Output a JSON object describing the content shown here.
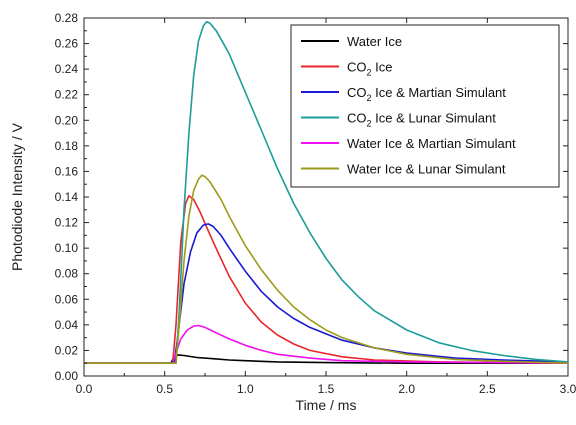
{
  "chart_data": {
    "type": "line",
    "xlabel": "Time / ms",
    "ylabel": "Photodiode Intensity / V",
    "xlim": [
      0.0,
      3.0
    ],
    "ylim": [
      0.0,
      0.28
    ],
    "x_ticks": [
      "0.0",
      "0.5",
      "1.0",
      "1.5",
      "2.0",
      "2.5",
      "3.0"
    ],
    "y_ticks": [
      "0.00",
      "0.02",
      "0.04",
      "0.06",
      "0.08",
      "0.10",
      "0.12",
      "0.14",
      "0.16",
      "0.18",
      "0.20",
      "0.22",
      "0.24",
      "0.26",
      "0.28"
    ],
    "grid": false,
    "legend_position": "top-right",
    "series": [
      {
        "name": "Water Ice",
        "name_main": "Water Ice",
        "name_sub": "",
        "name_tail": "",
        "color": "#000000",
        "points": [
          [
            0.0,
            0.01
          ],
          [
            0.54,
            0.01
          ],
          [
            0.55,
            0.013
          ],
          [
            0.58,
            0.0165
          ],
          [
            0.62,
            0.016
          ],
          [
            0.7,
            0.0145
          ],
          [
            0.8,
            0.0135
          ],
          [
            0.9,
            0.0125
          ],
          [
            1.0,
            0.012
          ],
          [
            1.2,
            0.011
          ],
          [
            1.5,
            0.0105
          ],
          [
            2.0,
            0.01
          ],
          [
            3.0,
            0.01
          ]
        ]
      },
      {
        "name": "CO2 Ice",
        "name_main": "CO",
        "name_sub": "2",
        "name_tail": " Ice",
        "color": "#e8262a",
        "points": [
          [
            0.0,
            0.01
          ],
          [
            0.55,
            0.01
          ],
          [
            0.57,
            0.04
          ],
          [
            0.6,
            0.105
          ],
          [
            0.63,
            0.135
          ],
          [
            0.65,
            0.141
          ],
          [
            0.68,
            0.138
          ],
          [
            0.72,
            0.128
          ],
          [
            0.8,
            0.105
          ],
          [
            0.9,
            0.078
          ],
          [
            1.0,
            0.057
          ],
          [
            1.1,
            0.042
          ],
          [
            1.2,
            0.032
          ],
          [
            1.3,
            0.025
          ],
          [
            1.4,
            0.02
          ],
          [
            1.6,
            0.015
          ],
          [
            1.8,
            0.0125
          ],
          [
            2.2,
            0.011
          ],
          [
            3.0,
            0.01
          ]
        ]
      },
      {
        "name": "CO2 Ice & Martian Simulant",
        "name_main": "CO",
        "name_sub": "2",
        "name_tail": " Ice & Martian Simulant",
        "color": "#1919d6",
        "points": [
          [
            0.0,
            0.01
          ],
          [
            0.56,
            0.01
          ],
          [
            0.58,
            0.03
          ],
          [
            0.62,
            0.072
          ],
          [
            0.66,
            0.097
          ],
          [
            0.7,
            0.112
          ],
          [
            0.74,
            0.118
          ],
          [
            0.77,
            0.119
          ],
          [
            0.8,
            0.117
          ],
          [
            0.85,
            0.11
          ],
          [
            0.9,
            0.1
          ],
          [
            1.0,
            0.082
          ],
          [
            1.1,
            0.066
          ],
          [
            1.2,
            0.054
          ],
          [
            1.3,
            0.045
          ],
          [
            1.4,
            0.038
          ],
          [
            1.6,
            0.028
          ],
          [
            1.8,
            0.022
          ],
          [
            2.0,
            0.018
          ],
          [
            2.3,
            0.014
          ],
          [
            2.6,
            0.0125
          ],
          [
            3.0,
            0.011
          ]
        ]
      },
      {
        "name": "CO2 Ice & Lunar Simulant",
        "name_main": "CO",
        "name_sub": "2",
        "name_tail": " Ice & Lunar Simulant",
        "color": "#1c9d9a",
        "points": [
          [
            0.0,
            0.01
          ],
          [
            0.57,
            0.01
          ],
          [
            0.59,
            0.05
          ],
          [
            0.62,
            0.13
          ],
          [
            0.65,
            0.19
          ],
          [
            0.68,
            0.235
          ],
          [
            0.71,
            0.262
          ],
          [
            0.74,
            0.274
          ],
          [
            0.76,
            0.277
          ],
          [
            0.78,
            0.276
          ],
          [
            0.82,
            0.27
          ],
          [
            0.9,
            0.252
          ],
          [
            1.0,
            0.222
          ],
          [
            1.1,
            0.192
          ],
          [
            1.2,
            0.162
          ],
          [
            1.3,
            0.135
          ],
          [
            1.4,
            0.112
          ],
          [
            1.5,
            0.092
          ],
          [
            1.6,
            0.075
          ],
          [
            1.7,
            0.062
          ],
          [
            1.8,
            0.051
          ],
          [
            2.0,
            0.036
          ],
          [
            2.2,
            0.026
          ],
          [
            2.4,
            0.02
          ],
          [
            2.6,
            0.016
          ],
          [
            2.8,
            0.013
          ],
          [
            3.0,
            0.011
          ]
        ]
      },
      {
        "name": "Water Ice & Martian Simulant",
        "name_main": "Water Ice & Martian Simulant",
        "name_sub": "",
        "name_tail": "",
        "color": "#ee10ee",
        "points": [
          [
            0.0,
            0.01
          ],
          [
            0.55,
            0.01
          ],
          [
            0.57,
            0.018
          ],
          [
            0.6,
            0.029
          ],
          [
            0.64,
            0.036
          ],
          [
            0.68,
            0.039
          ],
          [
            0.71,
            0.0395
          ],
          [
            0.75,
            0.038
          ],
          [
            0.8,
            0.035
          ],
          [
            0.9,
            0.029
          ],
          [
            1.0,
            0.024
          ],
          [
            1.1,
            0.02
          ],
          [
            1.2,
            0.017
          ],
          [
            1.4,
            0.014
          ],
          [
            1.6,
            0.012
          ],
          [
            2.0,
            0.011
          ],
          [
            3.0,
            0.01
          ]
        ]
      },
      {
        "name": "Water Ice & Lunar Simulant",
        "name_main": "Water Ice & Lunar Simulant",
        "name_sub": "",
        "name_tail": "",
        "color": "#9e9a1a",
        "points": [
          [
            0.0,
            0.01
          ],
          [
            0.57,
            0.01
          ],
          [
            0.59,
            0.04
          ],
          [
            0.62,
            0.09
          ],
          [
            0.65,
            0.125
          ],
          [
            0.68,
            0.145
          ],
          [
            0.71,
            0.154
          ],
          [
            0.73,
            0.157
          ],
          [
            0.75,
            0.156
          ],
          [
            0.78,
            0.152
          ],
          [
            0.85,
            0.138
          ],
          [
            0.9,
            0.125
          ],
          [
            1.0,
            0.102
          ],
          [
            1.1,
            0.083
          ],
          [
            1.2,
            0.067
          ],
          [
            1.3,
            0.054
          ],
          [
            1.4,
            0.044
          ],
          [
            1.5,
            0.036
          ],
          [
            1.6,
            0.03
          ],
          [
            1.8,
            0.022
          ],
          [
            2.0,
            0.017
          ],
          [
            2.3,
            0.013
          ],
          [
            2.6,
            0.0115
          ],
          [
            3.0,
            0.01
          ]
        ]
      }
    ]
  }
}
